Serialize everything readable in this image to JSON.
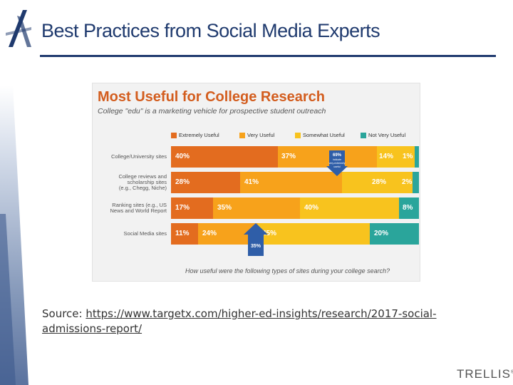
{
  "title": "Best Practices from Social Media Experts",
  "colors": {
    "navy": "#1f3a6e",
    "extremely_useful": "#e36c1f",
    "very_useful": "#f7a21b",
    "somewhat_useful": "#f8c31e",
    "not_very_useful": "#2aa59b",
    "callout": "#2f5ea8"
  },
  "infographic": {
    "heading": "Most Useful for College Research",
    "subheading": "College \"edu\" is a marketing vehicle for prospective student outreach",
    "legend": [
      "Extremely Useful",
      "Very Useful",
      "Somewhat Useful",
      "Not Very Useful"
    ],
    "rows": [
      {
        "label_lines": [
          "College/University sites"
        ],
        "values": [
          "40%",
          "37%",
          "14%",
          "1%"
        ]
      },
      {
        "label_lines": [
          "College reviews and",
          "scholarship sites",
          "(e.g., Chegg, Niche)"
        ],
        "values": [
          "28%",
          "41%",
          "28%",
          "2%"
        ]
      },
      {
        "label_lines": [
          "Ranking sites (e.g., US",
          "News and World Report"
        ],
        "values": [
          "17%",
          "35%",
          "40%",
          "8%"
        ]
      },
      {
        "label_lines": [
          "Social Media sites"
        ],
        "values": [
          "11%",
          "24%",
          "45%",
          "20%"
        ]
      }
    ],
    "callout_top": {
      "value": "69%",
      "caption_lines": [
        "indicate",
        "very-extremely",
        "useful"
      ]
    },
    "callout_bottom": {
      "value": "35%"
    },
    "footer_question": "How useful were the following types of sites during your college search?"
  },
  "source": {
    "prefix": "Source: ",
    "url_line1": "https://www.targetx.com/higher-ed-insights/research/2017-social-",
    "url_line2": "admissions-report/"
  },
  "brand": {
    "name": "TRELLIS",
    "mark": "®"
  }
}
